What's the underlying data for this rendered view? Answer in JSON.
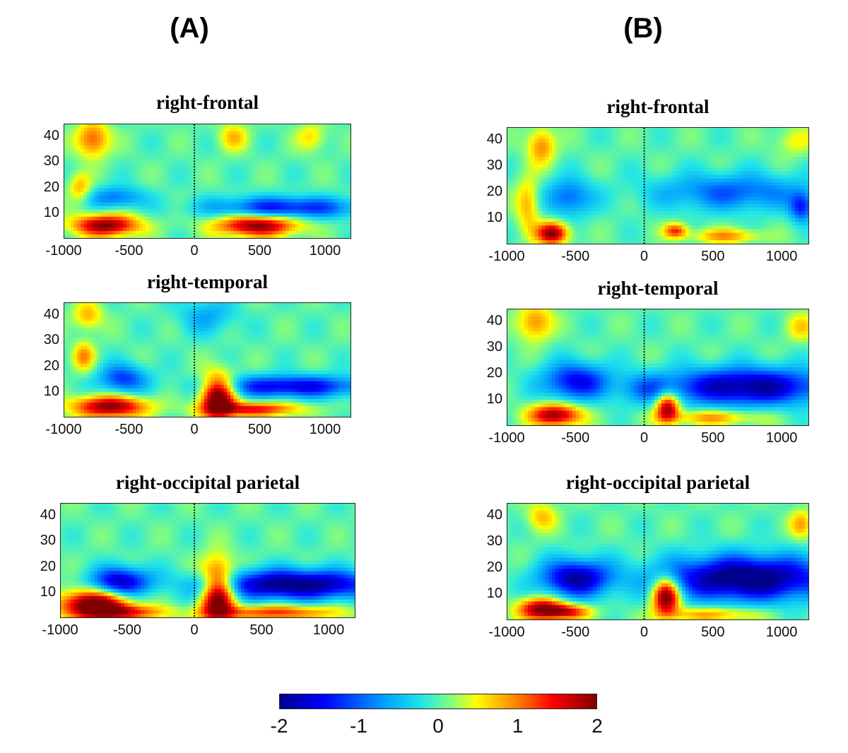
{
  "column_labels": {
    "a": "(A)",
    "b": "(B)"
  },
  "chart_data": [
    {
      "type": "heatmap",
      "column": "(A)",
      "title": "right-frontal",
      "xlim": [
        -1000,
        1200
      ],
      "ylim": [
        0,
        45
      ],
      "xticks": [
        "-1000",
        "-500",
        "0",
        "500",
        "1000"
      ],
      "yticks": [
        "10",
        "20",
        "30",
        "40"
      ],
      "event_marker_x": 0,
      "blobs": [
        {
          "t": -680,
          "f": 5,
          "st": 180,
          "sf": 3,
          "v": 2
        },
        {
          "t": 480,
          "f": 5,
          "st": 220,
          "sf": 3,
          "v": 2
        },
        {
          "t": -780,
          "f": 39,
          "st": 90,
          "sf": 5,
          "v": 1.2
        },
        {
          "t": -880,
          "f": 20,
          "st": 60,
          "sf": 4,
          "v": 0.8
        },
        {
          "t": -600,
          "f": 16,
          "st": 150,
          "sf": 3,
          "v": -0.9
        },
        {
          "t": 700,
          "f": 12,
          "st": 400,
          "sf": 3,
          "v": -1.4
        },
        {
          "t": 300,
          "f": 40,
          "st": 80,
          "sf": 4,
          "v": 0.7
        },
        {
          "t": 900,
          "f": 40,
          "st": 80,
          "sf": 4,
          "v": 0.6
        }
      ]
    },
    {
      "type": "heatmap",
      "column": "(A)",
      "title": "right-temporal",
      "xlim": [
        -1000,
        1200
      ],
      "ylim": [
        0,
        45
      ],
      "xticks": [
        "-1000",
        "-500",
        "0",
        "500",
        "1000"
      ],
      "yticks": [
        "10",
        "20",
        "30",
        "40"
      ],
      "event_marker_x": 0,
      "blobs": [
        {
          "t": -650,
          "f": 4,
          "st": 200,
          "sf": 3,
          "v": 2
        },
        {
          "t": 180,
          "f": 8,
          "st": 90,
          "sf": 6,
          "v": 2.4
        },
        {
          "t": 450,
          "f": 3,
          "st": 250,
          "sf": 2,
          "v": 1.5
        },
        {
          "t": -850,
          "f": 24,
          "st": 60,
          "sf": 4,
          "v": 0.9
        },
        {
          "t": -820,
          "f": 40,
          "st": 80,
          "sf": 4,
          "v": 0.8
        },
        {
          "t": -550,
          "f": 15,
          "st": 130,
          "sf": 4,
          "v": -1.2
        },
        {
          "t": 750,
          "f": 12,
          "st": 400,
          "sf": 3,
          "v": -1.6
        },
        {
          "t": 100,
          "f": 40,
          "st": 150,
          "sf": 5,
          "v": -0.6
        }
      ]
    },
    {
      "type": "heatmap",
      "column": "(A)",
      "title": "right-occipital parietal",
      "xlim": [
        -1000,
        1200
      ],
      "ylim": [
        0,
        45
      ],
      "xticks": [
        "-1000",
        "-500",
        "0",
        "500",
        "1000"
      ],
      "yticks": [
        "10",
        "20",
        "30",
        "40"
      ],
      "event_marker_x": 0,
      "blobs": [
        {
          "t": -750,
          "f": 5,
          "st": 180,
          "sf": 4,
          "v": 2.4
        },
        {
          "t": -500,
          "f": 2,
          "st": 200,
          "sf": 2,
          "v": 1.2
        },
        {
          "t": 170,
          "f": 10,
          "st": 90,
          "sf": 8,
          "v": 2.6
        },
        {
          "t": 600,
          "f": 2,
          "st": 350,
          "sf": 2,
          "v": 1.3
        },
        {
          "t": -550,
          "f": 14,
          "st": 150,
          "sf": 4,
          "v": -1.8
        },
        {
          "t": 750,
          "f": 13,
          "st": 430,
          "sf": 4,
          "v": -2.2
        },
        {
          "t": 100,
          "f": 12,
          "st": 90,
          "sf": 4,
          "v": -0.6
        }
      ]
    },
    {
      "type": "heatmap",
      "column": "(B)",
      "title": "right-frontal",
      "xlim": [
        -1000,
        1200
      ],
      "ylim": [
        0,
        45
      ],
      "xticks": [
        "-1000",
        "-500",
        "0",
        "500",
        "1000"
      ],
      "yticks": [
        "10",
        "20",
        "30",
        "40"
      ],
      "event_marker_x": 0,
      "blobs": [
        {
          "t": -670,
          "f": 4,
          "st": 80,
          "sf": 3,
          "v": 2
        },
        {
          "t": 230,
          "f": 5,
          "st": 60,
          "sf": 2,
          "v": 1.3
        },
        {
          "t": 600,
          "f": 3,
          "st": 180,
          "sf": 2,
          "v": 0.9
        },
        {
          "t": -750,
          "f": 38,
          "st": 70,
          "sf": 5,
          "v": 1
        },
        {
          "t": -850,
          "f": 15,
          "st": 60,
          "sf": 8,
          "v": 0.8
        },
        {
          "t": -550,
          "f": 18,
          "st": 120,
          "sf": 5,
          "v": -1
        },
        {
          "t": 650,
          "f": 20,
          "st": 400,
          "sf": 5,
          "v": -1
        },
        {
          "t": 1150,
          "f": 14,
          "st": 60,
          "sf": 4,
          "v": -1.2
        },
        {
          "t": 1100,
          "f": 40,
          "st": 100,
          "sf": 4,
          "v": 0.5
        }
      ]
    },
    {
      "type": "heatmap",
      "column": "(B)",
      "title": "right-temporal",
      "xlim": [
        -1000,
        1200
      ],
      "ylim": [
        0,
        45
      ],
      "xticks": [
        "-1000",
        "-500",
        "0",
        "500",
        "1000"
      ],
      "yticks": [
        "10",
        "20",
        "30",
        "40"
      ],
      "event_marker_x": 0,
      "blobs": [
        {
          "t": -650,
          "f": 4,
          "st": 130,
          "sf": 3,
          "v": 2
        },
        {
          "t": 170,
          "f": 7,
          "st": 60,
          "sf": 4,
          "v": 2
        },
        {
          "t": 500,
          "f": 3,
          "st": 250,
          "sf": 2,
          "v": 0.9
        },
        {
          "t": -800,
          "f": 40,
          "st": 90,
          "sf": 5,
          "v": 1
        },
        {
          "t": -500,
          "f": 17,
          "st": 170,
          "sf": 5,
          "v": -1.5
        },
        {
          "t": 750,
          "f": 15,
          "st": 420,
          "sf": 5,
          "v": -2
        },
        {
          "t": 0,
          "f": 14,
          "st": 130,
          "sf": 4,
          "v": -0.6
        },
        {
          "t": 1150,
          "f": 38,
          "st": 80,
          "sf": 4,
          "v": 0.6
        }
      ]
    },
    {
      "type": "heatmap",
      "column": "(B)",
      "title": "right-occipital parietal",
      "xlim": [
        -1000,
        1200
      ],
      "ylim": [
        0,
        45
      ],
      "xticks": [
        "-1000",
        "-500",
        "0",
        "500",
        "1000"
      ],
      "yticks": [
        "10",
        "20",
        "30",
        "40"
      ],
      "event_marker_x": 0,
      "blobs": [
        {
          "t": -750,
          "f": 4,
          "st": 120,
          "sf": 3,
          "v": 2
        },
        {
          "t": -550,
          "f": 3,
          "st": 120,
          "sf": 2,
          "v": 1.3
        },
        {
          "t": 160,
          "f": 9,
          "st": 70,
          "sf": 5,
          "v": 2.4
        },
        {
          "t": 500,
          "f": 2,
          "st": 250,
          "sf": 2,
          "v": 0.9
        },
        {
          "t": -500,
          "f": 16,
          "st": 180,
          "sf": 5,
          "v": -1.9
        },
        {
          "t": 750,
          "f": 16,
          "st": 430,
          "sf": 6,
          "v": -2.3
        },
        {
          "t": -750,
          "f": 40,
          "st": 80,
          "sf": 4,
          "v": 0.7
        },
        {
          "t": 1150,
          "f": 37,
          "st": 60,
          "sf": 4,
          "v": 0.8
        }
      ]
    }
  ],
  "colorbar": {
    "ticks": [
      "-2",
      "-1",
      "0",
      "1",
      "2"
    ],
    "range": [
      -2,
      2
    ]
  }
}
